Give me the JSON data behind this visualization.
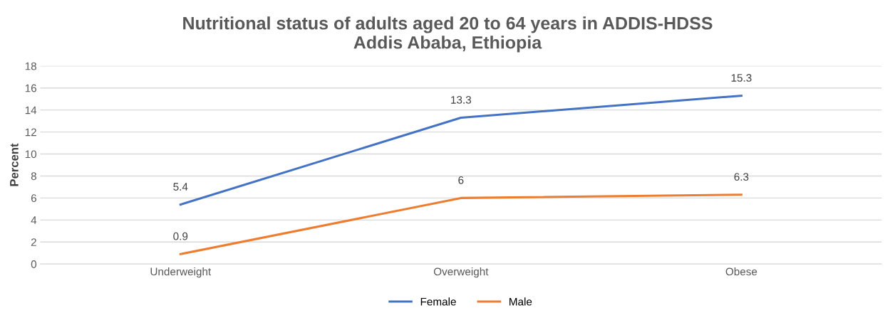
{
  "chart_data": {
    "type": "line",
    "title": "Nutritional status of adults aged 20 to 64 years in ADDIS-HDSS\nAddis Ababa, Ethiopia",
    "ylabel": "Percent",
    "categories": [
      "Underweight",
      "Overweight",
      "Obese"
    ],
    "series": [
      {
        "name": "Female",
        "color": "#4472c4",
        "values": [
          5.4,
          13.3,
          15.3
        ]
      },
      {
        "name": "Male",
        "color": "#ed7d31",
        "values": [
          0.9,
          6,
          6.3
        ]
      }
    ],
    "ylim": [
      0,
      18
    ],
    "yticks": [
      0,
      2,
      4,
      6,
      8,
      10,
      12,
      14,
      16,
      18
    ],
    "grid": "y",
    "legend": "bottom",
    "data_labels": true,
    "marker": "none",
    "line_style": "solid"
  }
}
